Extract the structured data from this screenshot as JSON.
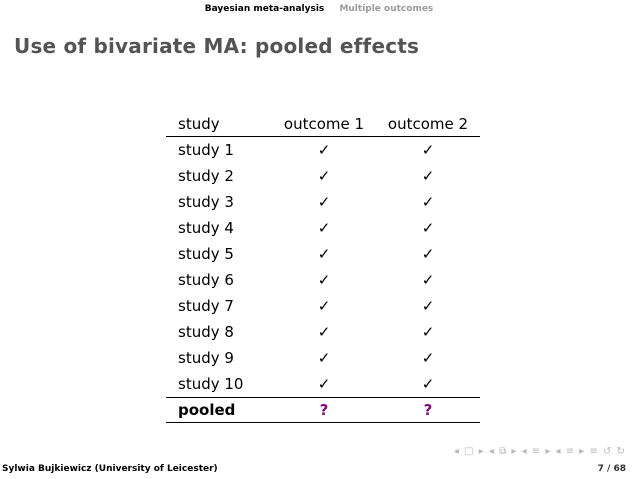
{
  "header": {
    "section_active": "Bayesian meta-analysis",
    "section_inactive": "Multiple outcomes"
  },
  "slide": {
    "title": "Use of bivariate MA: pooled effects"
  },
  "table": {
    "columns": [
      "study",
      "outcome 1",
      "outcome 2"
    ],
    "rows": [
      {
        "study": "study 1",
        "o1": "✓",
        "o2": "✓"
      },
      {
        "study": "study 2",
        "o1": "✓",
        "o2": "✓"
      },
      {
        "study": "study 3",
        "o1": "✓",
        "o2": "✓"
      },
      {
        "study": "study 4",
        "o1": "✓",
        "o2": "✓"
      },
      {
        "study": "study 5",
        "o1": "✓",
        "o2": "✓"
      },
      {
        "study": "study 6",
        "o1": "✓",
        "o2": "✓"
      },
      {
        "study": "study 7",
        "o1": "✓",
        "o2": "✓"
      },
      {
        "study": "study 8",
        "o1": "✓",
        "o2": "✓"
      },
      {
        "study": "study 9",
        "o1": "✓",
        "o2": "✓"
      },
      {
        "study": "study 10",
        "o1": "✓",
        "o2": "✓"
      }
    ],
    "pooled": {
      "study": "pooled",
      "o1": "?",
      "o2": "?"
    }
  },
  "footer": {
    "author": "Sylwia Bujkiewicz (University of Leicester)",
    "page": "7 / 68"
  },
  "nav_symbols": "◂ □ ▸ ◂ ⧉ ▸ ◂ ≡ ▸ ◂ ≡ ▸ ≡ ↺ ↻",
  "colors": {
    "pooled_question": "#7f0f7e",
    "title": "#545454"
  }
}
